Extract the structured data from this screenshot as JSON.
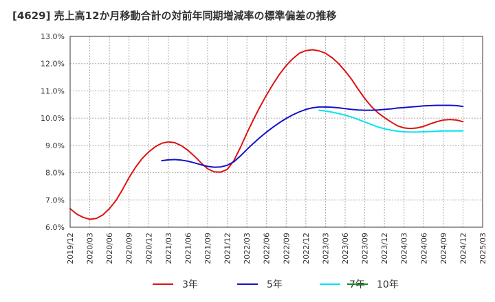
{
  "chart_data": {
    "type": "line",
    "title": "[4629]  売上高12か月移動合計の対前年同期増減率の標準偏差の推移",
    "xlabel": "",
    "ylabel": "",
    "ylim": [
      6.0,
      13.0
    ],
    "y_ticks": [
      "6.0%",
      "7.0%",
      "8.0%",
      "9.0%",
      "10.0%",
      "11.0%",
      "12.0%",
      "13.0%"
    ],
    "x_ticks": [
      "2019/12",
      "2020/03",
      "2020/06",
      "2020/09",
      "2020/12",
      "2021/03",
      "2021/06",
      "2021/09",
      "2021/12",
      "2022/03",
      "2022/06",
      "2022/09",
      "2022/12",
      "2023/03",
      "2023/06",
      "2023/09",
      "2023/12",
      "2024/03",
      "2024/06",
      "2024/09",
      "2024/12",
      "2025/03"
    ],
    "grid": true,
    "legend_position": "bottom",
    "series": [
      {
        "name": "3年",
        "color": "#dd1111",
        "points": [
          [
            "2019/12",
            6.68
          ],
          [
            "2020/01",
            6.48
          ],
          [
            "2020/02",
            6.36
          ],
          [
            "2020/03",
            6.29
          ],
          [
            "2020/04",
            6.32
          ],
          [
            "2020/05",
            6.45
          ],
          [
            "2020/06",
            6.68
          ],
          [
            "2020/07",
            6.98
          ],
          [
            "2020/08",
            7.38
          ],
          [
            "2020/09",
            7.82
          ],
          [
            "2020/10",
            8.2
          ],
          [
            "2020/11",
            8.52
          ],
          [
            "2020/12",
            8.76
          ],
          [
            "2021/01",
            8.95
          ],
          [
            "2021/02",
            9.08
          ],
          [
            "2021/03",
            9.13
          ],
          [
            "2021/04",
            9.1
          ],
          [
            "2021/05",
            8.99
          ],
          [
            "2021/06",
            8.82
          ],
          [
            "2021/07",
            8.6
          ],
          [
            "2021/08",
            8.36
          ],
          [
            "2021/09",
            8.14
          ],
          [
            "2021/10",
            8.03
          ],
          [
            "2021/11",
            8.02
          ],
          [
            "2021/12",
            8.12
          ],
          [
            "2022/01",
            8.44
          ],
          [
            "2022/02",
            8.92
          ],
          [
            "2022/03",
            9.45
          ],
          [
            "2022/04",
            9.95
          ],
          [
            "2022/05",
            10.42
          ],
          [
            "2022/06",
            10.85
          ],
          [
            "2022/07",
            11.25
          ],
          [
            "2022/08",
            11.62
          ],
          [
            "2022/09",
            11.93
          ],
          [
            "2022/10",
            12.18
          ],
          [
            "2022/11",
            12.38
          ],
          [
            "2022/12",
            12.48
          ],
          [
            "2023/01",
            12.51
          ],
          [
            "2023/02",
            12.47
          ],
          [
            "2023/03",
            12.38
          ],
          [
            "2023/04",
            12.22
          ],
          [
            "2023/05",
            12.0
          ],
          [
            "2023/06",
            11.73
          ],
          [
            "2023/07",
            11.42
          ],
          [
            "2023/08",
            11.06
          ],
          [
            "2023/09",
            10.72
          ],
          [
            "2023/10",
            10.43
          ],
          [
            "2023/11",
            10.2
          ],
          [
            "2023/12",
            10.02
          ],
          [
            "2024/01",
            9.86
          ],
          [
            "2024/02",
            9.72
          ],
          [
            "2024/03",
            9.64
          ],
          [
            "2024/04",
            9.62
          ],
          [
            "2024/05",
            9.64
          ],
          [
            "2024/06",
            9.7
          ],
          [
            "2024/07",
            9.79
          ],
          [
            "2024/08",
            9.87
          ],
          [
            "2024/09",
            9.93
          ],
          [
            "2024/10",
            9.95
          ],
          [
            "2024/11",
            9.93
          ],
          [
            "2024/12",
            9.87
          ]
        ]
      },
      {
        "name": "5年",
        "color": "#1111cc",
        "points": [
          [
            "2021/02",
            8.44
          ],
          [
            "2021/03",
            8.47
          ],
          [
            "2021/04",
            8.48
          ],
          [
            "2021/05",
            8.46
          ],
          [
            "2021/06",
            8.42
          ],
          [
            "2021/07",
            8.36
          ],
          [
            "2021/08",
            8.29
          ],
          [
            "2021/09",
            8.23
          ],
          [
            "2021/10",
            8.2
          ],
          [
            "2021/11",
            8.21
          ],
          [
            "2021/12",
            8.27
          ],
          [
            "2022/01",
            8.4
          ],
          [
            "2022/02",
            8.61
          ],
          [
            "2022/03",
            8.85
          ],
          [
            "2022/04",
            9.08
          ],
          [
            "2022/05",
            9.29
          ],
          [
            "2022/06",
            9.49
          ],
          [
            "2022/07",
            9.67
          ],
          [
            "2022/08",
            9.84
          ],
          [
            "2022/09",
            9.99
          ],
          [
            "2022/10",
            10.12
          ],
          [
            "2022/11",
            10.23
          ],
          [
            "2022/12",
            10.32
          ],
          [
            "2023/01",
            10.38
          ],
          [
            "2023/02",
            10.41
          ],
          [
            "2023/03",
            10.41
          ],
          [
            "2023/04",
            10.4
          ],
          [
            "2023/05",
            10.38
          ],
          [
            "2023/06",
            10.35
          ],
          [
            "2023/07",
            10.32
          ],
          [
            "2023/08",
            10.3
          ],
          [
            "2023/09",
            10.29
          ],
          [
            "2023/10",
            10.29
          ],
          [
            "2023/11",
            10.3
          ],
          [
            "2023/12",
            10.32
          ],
          [
            "2024/01",
            10.34
          ],
          [
            "2024/02",
            10.37
          ],
          [
            "2024/03",
            10.39
          ],
          [
            "2024/04",
            10.41
          ],
          [
            "2024/05",
            10.43
          ],
          [
            "2024/06",
            10.45
          ],
          [
            "2024/07",
            10.46
          ],
          [
            "2024/08",
            10.47
          ],
          [
            "2024/09",
            10.47
          ],
          [
            "2024/10",
            10.47
          ],
          [
            "2024/11",
            10.46
          ],
          [
            "2024/12",
            10.43
          ]
        ]
      },
      {
        "name": "7年",
        "color": "#00e5ee",
        "points": [
          [
            "2023/02",
            10.29
          ],
          [
            "2023/03",
            10.26
          ],
          [
            "2023/04",
            10.22
          ],
          [
            "2023/05",
            10.17
          ],
          [
            "2023/06",
            10.11
          ],
          [
            "2023/07",
            10.04
          ],
          [
            "2023/08",
            9.95
          ],
          [
            "2023/09",
            9.86
          ],
          [
            "2023/10",
            9.77
          ],
          [
            "2023/11",
            9.68
          ],
          [
            "2023/12",
            9.61
          ],
          [
            "2024/01",
            9.56
          ],
          [
            "2024/02",
            9.52
          ],
          [
            "2024/03",
            9.5
          ],
          [
            "2024/04",
            9.49
          ],
          [
            "2024/05",
            9.49
          ],
          [
            "2024/06",
            9.5
          ],
          [
            "2024/07",
            9.51
          ],
          [
            "2024/08",
            9.52
          ],
          [
            "2024/09",
            9.53
          ],
          [
            "2024/10",
            9.53
          ],
          [
            "2024/11",
            9.53
          ],
          [
            "2024/12",
            9.53
          ]
        ]
      },
      {
        "name": "10年",
        "color": "#228822",
        "points": []
      }
    ]
  }
}
